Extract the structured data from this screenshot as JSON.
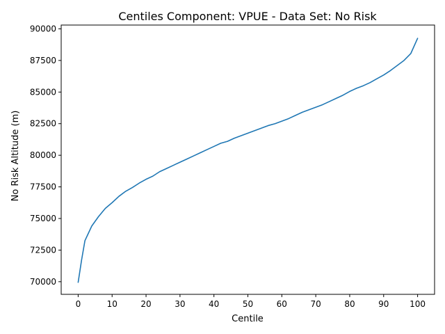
{
  "chart_data": {
    "type": "line",
    "title": "Centiles Component: VPUE - Data Set: No Risk",
    "xlabel": "Centile",
    "ylabel": "No Risk Altitude (m)",
    "xlim": [
      -5,
      105
    ],
    "ylim": [
      69000,
      90300
    ],
    "x_ticks": [
      0,
      10,
      20,
      30,
      40,
      50,
      60,
      70,
      80,
      90,
      100
    ],
    "y_ticks": [
      70000,
      72500,
      75000,
      77500,
      80000,
      82500,
      85000,
      87500,
      90000
    ],
    "grid": false,
    "color": "#1f77b4",
    "series": [
      {
        "x": [
          0,
          1,
          2,
          4,
          6,
          8,
          10,
          12,
          14,
          16,
          18,
          20,
          22,
          24,
          26,
          28,
          30,
          32,
          34,
          36,
          38,
          40,
          42,
          44,
          46,
          48,
          50,
          52,
          54,
          56,
          58,
          60,
          62,
          64,
          66,
          68,
          70,
          72,
          74,
          76,
          78,
          80,
          82,
          84,
          86,
          88,
          90,
          92,
          94,
          96,
          98,
          100
        ],
        "values": [
          69950,
          71700,
          73250,
          74400,
          75150,
          75800,
          76250,
          76750,
          77150,
          77450,
          77800,
          78100,
          78350,
          78700,
          78950,
          79200,
          79450,
          79700,
          79950,
          80200,
          80450,
          80700,
          80950,
          81100,
          81350,
          81550,
          81750,
          81950,
          82150,
          82350,
          82500,
          82700,
          82900,
          83150,
          83400,
          83600,
          83800,
          84000,
          84250,
          84500,
          84750,
          85050,
          85300,
          85500,
          85750,
          86050,
          86350,
          86700,
          87100,
          87500,
          88050,
          89250
        ]
      }
    ]
  }
}
